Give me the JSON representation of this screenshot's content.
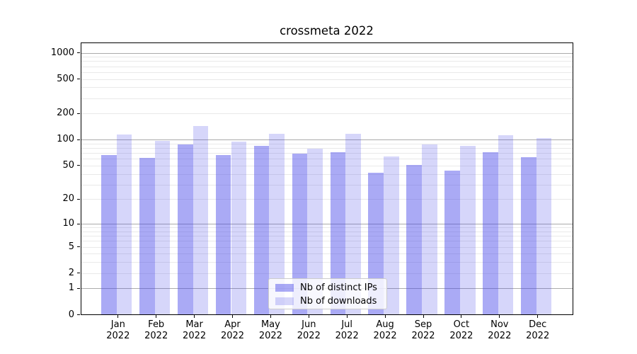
{
  "chart_data": {
    "type": "bar",
    "title": "crossmeta 2022",
    "categories": [
      "Jan",
      "Feb",
      "Mar",
      "Apr",
      "May",
      "Jun",
      "Jul",
      "Aug",
      "Sep",
      "Oct",
      "Nov",
      "Dec"
    ],
    "category_year": "2022",
    "series": [
      {
        "name": "Nb of distinct IPs",
        "color": "rgba(70,70,233,0.46)",
        "values": [
          67,
          62,
          88,
          67,
          85,
          69,
          71,
          41,
          51,
          44,
          72,
          63
        ]
      },
      {
        "name": "Nb of downloads",
        "color": "rgba(70,70,233,0.22)",
        "values": [
          115,
          97,
          144,
          95,
          116,
          79,
          118,
          64,
          88,
          85,
          112,
          105
        ]
      }
    ],
    "yaxis": {
      "scale": "log1p",
      "lim": [
        0,
        1300
      ],
      "tick_values": [
        0,
        1,
        2,
        5,
        10,
        20,
        50,
        100,
        200,
        500,
        1000
      ],
      "tick_labels": [
        "0",
        "1",
        "2",
        "5",
        "10",
        "20",
        "50",
        "100",
        "200",
        "500",
        "1000"
      ]
    },
    "grid": {
      "major_values": [
        1,
        10,
        100,
        1000
      ],
      "minor_values": [
        2,
        3,
        4,
        5,
        6,
        7,
        8,
        9,
        20,
        30,
        40,
        50,
        60,
        70,
        80,
        90,
        200,
        300,
        400,
        500,
        600,
        700,
        800,
        900
      ]
    },
    "legend": {
      "entries": [
        "Nb of distinct IPs",
        "Nb of downloads"
      ],
      "position": "inside lower center"
    },
    "colors": {
      "bar_dark": "rgba(70,70,233,0.46)",
      "bar_light": "rgba(70,70,233,0.22)",
      "grid_major": "#ababab",
      "grid_minor": "#e9e9e9",
      "spine": "#000000",
      "text": "#000000",
      "legend_border": "#cccccc",
      "legend_bg": "rgba(255,255,255,0.8)"
    }
  }
}
